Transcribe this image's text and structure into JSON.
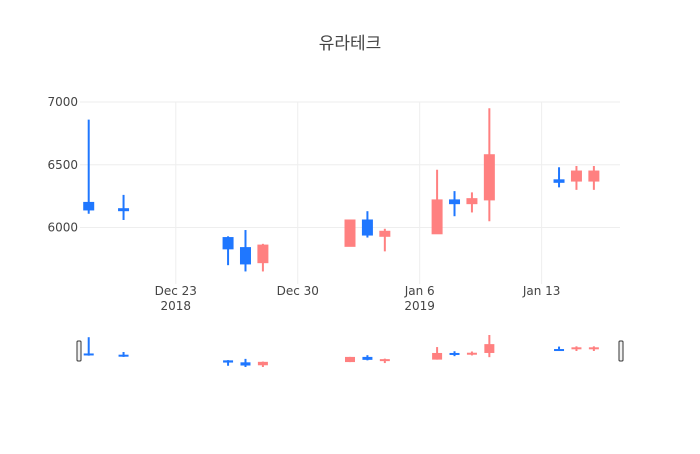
{
  "chart_data": {
    "type": "candlestick",
    "title": "유라테크",
    "xlabel": "",
    "ylabel": "",
    "ylim": [
      5550,
      7000
    ],
    "grid": true,
    "legend": "none",
    "x_ticks": [
      {
        "date": "2018-12-23",
        "label": "Dec 23",
        "sublabel": "2018"
      },
      {
        "date": "2018-12-30",
        "label": "Dec 30",
        "sublabel": ""
      },
      {
        "date": "2019-01-06",
        "label": "Jan 6",
        "sublabel": "2019"
      },
      {
        "date": "2019-01-13",
        "label": "Jan 13",
        "sublabel": ""
      }
    ],
    "y_ticks": [
      6000,
      6500,
      7000
    ],
    "x_range": [
      "2018-12-18",
      "2019-01-17"
    ],
    "rangeslider": true,
    "colors": {
      "increasing": "#ff8080",
      "decreasing": "#1f77ff",
      "grid": "#eeeeee",
      "text": "#444444",
      "background": "#ffffff"
    },
    "series": [
      {
        "date": "2018-12-18",
        "open": 6200,
        "high": 6860,
        "low": 6110,
        "close": 6140
      },
      {
        "date": "2018-12-20",
        "open": 6150,
        "high": 6260,
        "low": 6060,
        "close": 6140
      },
      {
        "date": "2018-12-26",
        "open": 5920,
        "high": 5930,
        "low": 5700,
        "close": 5830
      },
      {
        "date": "2018-12-27",
        "open": 5840,
        "high": 5980,
        "low": 5650,
        "close": 5710
      },
      {
        "date": "2018-12-28",
        "open": 5720,
        "high": 5870,
        "low": 5650,
        "close": 5860
      },
      {
        "date": "2019-01-02",
        "open": 5850,
        "high": 6060,
        "low": 5850,
        "close": 6060
      },
      {
        "date": "2019-01-03",
        "open": 6060,
        "high": 6130,
        "low": 5920,
        "close": 5940
      },
      {
        "date": "2019-01-04",
        "open": 5930,
        "high": 5990,
        "low": 5810,
        "close": 5970
      },
      {
        "date": "2019-01-07",
        "open": 5950,
        "high": 6460,
        "low": 5950,
        "close": 6220
      },
      {
        "date": "2019-01-08",
        "open": 6220,
        "high": 6290,
        "low": 6090,
        "close": 6190
      },
      {
        "date": "2019-01-09",
        "open": 6190,
        "high": 6280,
        "low": 6120,
        "close": 6230
      },
      {
        "date": "2019-01-10",
        "open": 6220,
        "high": 6950,
        "low": 6050,
        "close": 6580
      },
      {
        "date": "2019-01-14",
        "open": 6380,
        "high": 6480,
        "low": 6320,
        "close": 6360
      },
      {
        "date": "2019-01-15",
        "open": 6370,
        "high": 6490,
        "low": 6300,
        "close": 6450
      },
      {
        "date": "2019-01-16",
        "open": 6370,
        "high": 6490,
        "low": 6300,
        "close": 6450
      }
    ]
  }
}
